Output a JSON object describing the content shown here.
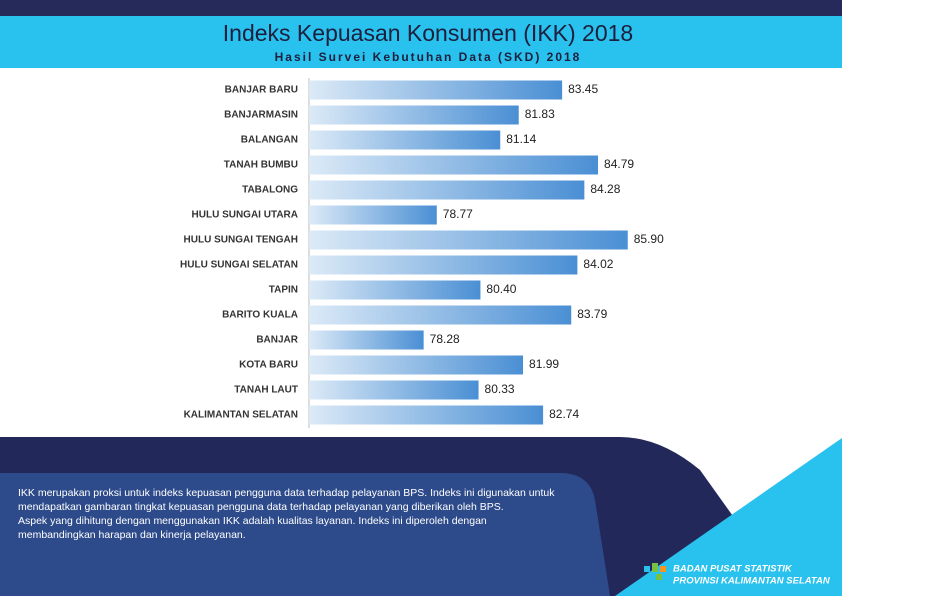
{
  "chart_data": {
    "type": "bar",
    "orientation": "horizontal",
    "title": "Indeks Kepuasan Konsumen (IKK) 2018",
    "subtitle": "Hasil Survei Kebutuhan Data (SKD) 2018",
    "categories": [
      "BANJAR BARU",
      "BANJARMASIN",
      "BALANGAN",
      "TANAH BUMBU",
      "TABALONG",
      "HULU SUNGAI UTARA",
      "HULU SUNGAI TENGAH",
      "HULU SUNGAI SELATAN",
      "TAPIN",
      "BARITO KUALA",
      "BANJAR",
      "KOTA BARU",
      "TANAH LAUT",
      "KALIMANTAN SELATAN"
    ],
    "values": [
      83.45,
      81.83,
      81.14,
      84.79,
      84.28,
      78.77,
      85.9,
      84.02,
      80.4,
      83.79,
      78.28,
      81.99,
      80.33,
      82.74
    ],
    "value_labels": [
      "83.45",
      "81.83",
      "81.14",
      "84.79",
      "84.28",
      "78.77",
      "85.90",
      "84.02",
      "80.40",
      "83.79",
      "78.28",
      "81.99",
      "80.33",
      "82.74"
    ],
    "color": "#4a8fd4",
    "xlim": [
      74,
      88
    ]
  },
  "footer": {
    "note": [
      "IKK merupakan proksi untuk indeks kepuasan pengguna data terhadap pelayanan BPS. Indeks ini digunakan untuk",
      "mendapatkan gambaran tingkat kepuasan pengguna data terhadap pelayanan yang diberikan oleh BPS.",
      "Aspek yang dihitung dengan menggunakan IKK adalah kualitas layanan. Indeks ini diperoleh dengan",
      "membandingkan harapan dan kinerja pelayanan."
    ],
    "org": [
      "BADAN PUSAT STATISTIK",
      "PROVINSI KALIMANTAN SELATAN"
    ]
  }
}
